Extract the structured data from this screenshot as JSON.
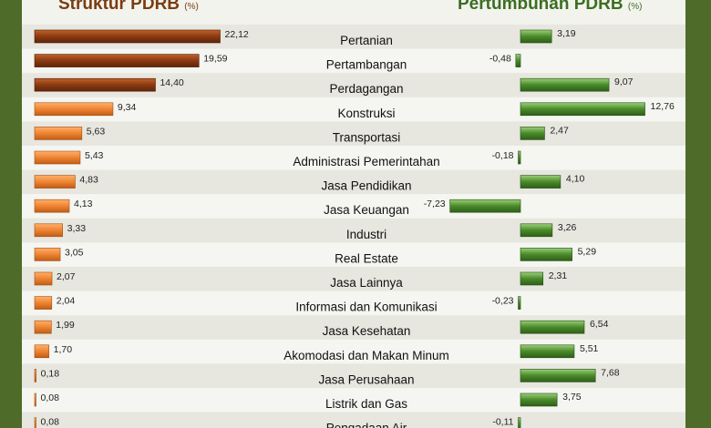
{
  "chart_data": [
    {
      "type": "bar",
      "orientation": "horizontal",
      "title": "Struktur PDRB",
      "unit": "(%)",
      "colors": {
        "bar_dark": "#8b3a13",
        "bar_light": "#ee8433"
      },
      "categories": [
        "Pertanian",
        "Pertambangan",
        "Perdagangan",
        "Konstruksi",
        "Transportasi",
        "Administrasi Pemerintahan",
        "Jasa Pendidikan",
        "Jasa Keuangan",
        "Industri",
        "Real Estate",
        "Jasa Lainnya",
        "Informasi dan Komunikasi",
        "Jasa Kesehatan",
        "Akomodasi dan Makan Minum",
        "Jasa Perusahaan",
        "Listrik dan Gas",
        "Pengadaan Air"
      ],
      "values": [
        22.12,
        19.59,
        14.4,
        9.34,
        5.63,
        5.43,
        4.83,
        4.13,
        3.33,
        3.05,
        2.07,
        2.04,
        1.99,
        1.7,
        0.18,
        0.08,
        0.08
      ],
      "value_labels": [
        "22,12",
        "19,59",
        "14,40",
        "9,34",
        "5,63",
        "5,43",
        "4,83",
        "4,13",
        "3,33",
        "3,05",
        "2,07",
        "2,04",
        "1,99",
        "1,70",
        "0,18",
        "0,08",
        "0,08"
      ]
    },
    {
      "type": "bar",
      "orientation": "horizontal",
      "title": "Pertumbuhan PDRB",
      "unit": "(%)",
      "colors": {
        "bar": "#4a8a2a",
        "bar_highlight": "#8cc866"
      },
      "categories": [
        "Pertanian",
        "Pertambangan",
        "Perdagangan",
        "Konstruksi",
        "Transportasi",
        "Administrasi Pemerintahan",
        "Jasa Pendidikan",
        "Jasa Keuangan",
        "Industri",
        "Real Estate",
        "Jasa Lainnya",
        "Informasi dan Komunikasi",
        "Jasa Kesehatan",
        "Akomodasi dan Makan Minum",
        "Jasa Perusahaan",
        "Listrik dan Gas",
        "Pengadaan Air"
      ],
      "values": [
        3.19,
        -0.48,
        9.07,
        12.76,
        2.47,
        -0.18,
        4.1,
        -7.23,
        3.26,
        5.29,
        2.31,
        -0.23,
        6.54,
        5.51,
        7.68,
        3.75,
        -0.11
      ],
      "value_labels": [
        "3,19",
        "-0,48",
        "9,07",
        "12,76",
        "2,47",
        "-0,18",
        "4,10",
        "-7,23",
        "3,26",
        "5,29",
        "2,31",
        "-0,23",
        "6,54",
        "5,51",
        "7,68",
        "3,75",
        "-0,11"
      ]
    }
  ]
}
